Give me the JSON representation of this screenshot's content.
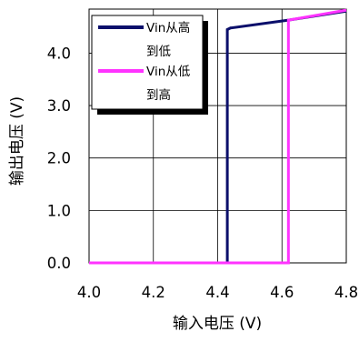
{
  "chart_data": {
    "type": "line",
    "title": "",
    "xlabel": "输入电压 (V)",
    "ylabel": "输出电压 (V)",
    "xlim": [
      4.0,
      4.8
    ],
    "ylim": [
      0.0,
      4.84
    ],
    "xticks": [
      "4.0",
      "4.2",
      "4.4",
      "4.6",
      "4.8"
    ],
    "yticks": [
      "0.0",
      "1.0",
      "2.0",
      "3.0",
      "4.0"
    ],
    "grid": true,
    "legend_position": "top-left",
    "series": [
      {
        "name_lines": [
          "Vin从高",
          "到低"
        ],
        "color": "#0b0f6b",
        "x": [
          4.0,
          4.43,
          4.43,
          4.44,
          4.62,
          4.8
        ],
        "y": [
          0.0,
          0.0,
          4.45,
          4.48,
          4.63,
          4.8
        ]
      },
      {
        "name_lines": [
          "Vin从低",
          "到高"
        ],
        "color": "#ff33ff",
        "x": [
          4.0,
          4.62,
          4.62,
          4.8
        ],
        "y": [
          0.0,
          0.0,
          4.63,
          4.82
        ]
      }
    ]
  }
}
